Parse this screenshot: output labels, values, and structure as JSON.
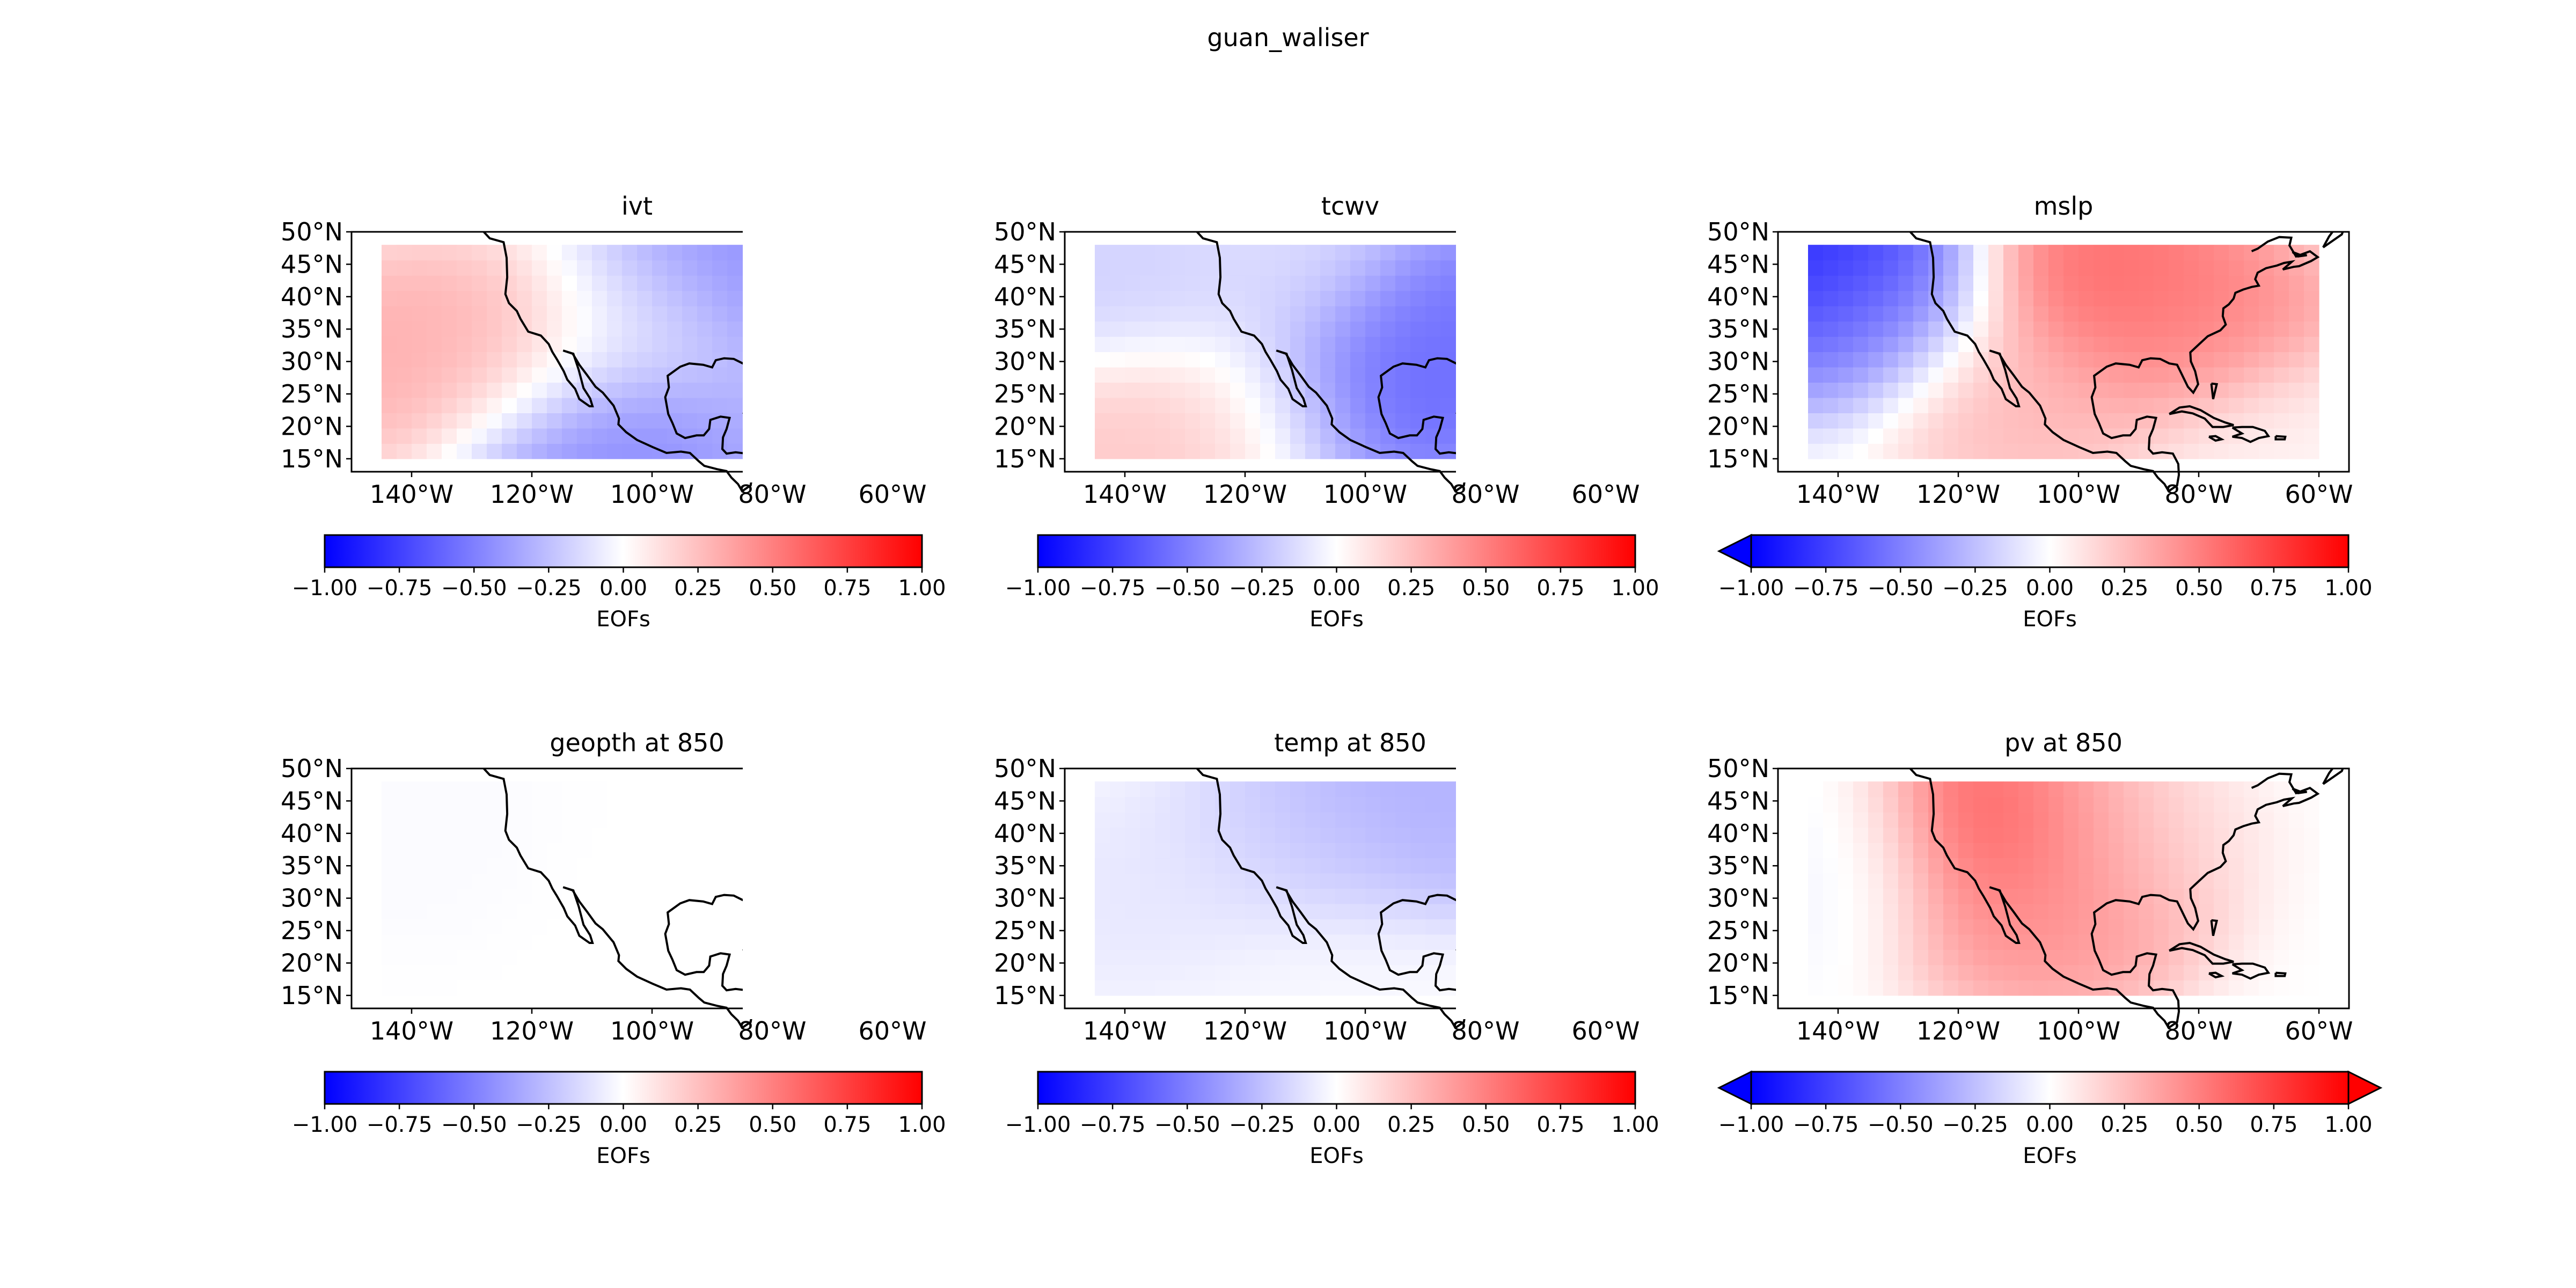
{
  "figure": {
    "title": "guan_waliser"
  },
  "chart_data": [
    {
      "type": "heatmap",
      "title": "ivt",
      "colorbar": {
        "label": "EOFs",
        "ticks": [
          "−1.00",
          "−0.75",
          "−0.50",
          "−0.25",
          "0.00",
          "0.25",
          "0.50",
          "0.75",
          "1.00"
        ],
        "extend": "neither",
        "vmin": -1,
        "vmax": 1
      },
      "xticks": [
        "140°W",
        "120°W",
        "100°W",
        "80°W",
        "60°W"
      ],
      "yticks": [
        "15°N",
        "20°N",
        "25°N",
        "30°N",
        "35°N",
        "40°N",
        "45°N",
        "50°N"
      ],
      "lon_range": [
        -150,
        -55
      ],
      "lat_range": [
        13,
        50
      ],
      "data_extent": {
        "lon": [
          -145,
          -60
        ],
        "lat": [
          15,
          48
        ]
      },
      "pattern": [
        {
          "lon": -140,
          "lat": 30,
          "value": 0.35
        },
        {
          "lon": -125,
          "lat": 30,
          "value": 0.3
        },
        {
          "lon": -112,
          "lat": 18,
          "value": -0.55
        },
        {
          "lon": -98,
          "lat": 15,
          "value": -0.45
        },
        {
          "lon": -85,
          "lat": 45,
          "value": -0.5
        },
        {
          "lon": -70,
          "lat": 40,
          "value": -0.45
        },
        {
          "lon": -72,
          "lat": 22,
          "value": -0.3
        },
        {
          "lon": -100,
          "lat": 35,
          "value": -0.1
        }
      ]
    },
    {
      "type": "heatmap",
      "title": "tcwv",
      "colorbar": {
        "label": "EOFs",
        "ticks": [
          "−1.00",
          "−0.75",
          "−0.50",
          "−0.25",
          "0.00",
          "0.25",
          "0.50",
          "0.75",
          "1.00"
        ],
        "extend": "neither",
        "vmin": -1,
        "vmax": 1
      },
      "xticks": [
        "140°W",
        "120°W",
        "100°W",
        "80°W",
        "60°W"
      ],
      "yticks": [
        "15°N",
        "20°N",
        "25°N",
        "30°N",
        "35°N",
        "40°N",
        "45°N",
        "50°N"
      ],
      "lon_range": [
        -150,
        -55
      ],
      "lat_range": [
        13,
        50
      ],
      "data_extent": {
        "lon": [
          -145,
          -60
        ],
        "lat": [
          15,
          48
        ]
      },
      "pattern": [
        {
          "lon": -135,
          "lat": 18,
          "value": 0.25
        },
        {
          "lon": -120,
          "lat": 22,
          "value": 0.15
        },
        {
          "lon": -100,
          "lat": 25,
          "value": -0.7
        },
        {
          "lon": -85,
          "lat": 35,
          "value": -0.6
        },
        {
          "lon": -70,
          "lat": 30,
          "value": -0.55
        },
        {
          "lon": -140,
          "lat": 42,
          "value": -0.2
        },
        {
          "lon": -115,
          "lat": 42,
          "value": -0.15
        }
      ]
    },
    {
      "type": "heatmap",
      "title": "mslp",
      "colorbar": {
        "label": "EOFs",
        "ticks": [
          "−1.00",
          "−0.75",
          "−0.50",
          "−0.25",
          "0.00",
          "0.25",
          "0.50",
          "0.75",
          "1.00"
        ],
        "extend": "min",
        "vmin": -1,
        "vmax": 1
      },
      "xticks": [
        "140°W",
        "120°W",
        "100°W",
        "80°W",
        "60°W"
      ],
      "yticks": [
        "15°N",
        "20°N",
        "25°N",
        "30°N",
        "35°N",
        "40°N",
        "45°N",
        "50°N"
      ],
      "lon_range": [
        -150,
        -55
      ],
      "lat_range": [
        13,
        50
      ],
      "data_extent": {
        "lon": [
          -145,
          -60
        ],
        "lat": [
          15,
          48
        ]
      },
      "pattern": [
        {
          "lon": -145,
          "lat": 46,
          "value": -1.0
        },
        {
          "lon": -135,
          "lat": 38,
          "value": -0.5
        },
        {
          "lon": -95,
          "lat": 42,
          "value": 0.65
        },
        {
          "lon": -80,
          "lat": 35,
          "value": 0.5
        },
        {
          "lon": -110,
          "lat": 25,
          "value": 0.3
        },
        {
          "lon": -65,
          "lat": 18,
          "value": 0.05
        }
      ]
    },
    {
      "type": "heatmap",
      "title": "geopth at 850",
      "colorbar": {
        "label": "EOFs",
        "ticks": [
          "−1.00",
          "−0.75",
          "−0.50",
          "−0.25",
          "0.00",
          "0.25",
          "0.50",
          "0.75",
          "1.00"
        ],
        "extend": "neither",
        "vmin": -1,
        "vmax": 1
      },
      "xticks": [
        "140°W",
        "120°W",
        "100°W",
        "80°W",
        "60°W"
      ],
      "yticks": [
        "15°N",
        "20°N",
        "25°N",
        "30°N",
        "35°N",
        "40°N",
        "45°N",
        "50°N"
      ],
      "lon_range": [
        -150,
        -55
      ],
      "lat_range": [
        13,
        50
      ],
      "data_extent": {
        "lon": [
          -145,
          -60
        ],
        "lat": [
          15,
          48
        ]
      },
      "pattern": [
        {
          "lon": -140,
          "lat": 40,
          "value": -0.02
        },
        {
          "lon": -100,
          "lat": 30,
          "value": 0.0
        }
      ]
    },
    {
      "type": "heatmap",
      "title": "temp at 850",
      "colorbar": {
        "label": "EOFs",
        "ticks": [
          "−1.00",
          "−0.75",
          "−0.50",
          "−0.25",
          "0.00",
          "0.25",
          "0.50",
          "0.75",
          "1.00"
        ],
        "extend": "neither",
        "vmin": -1,
        "vmax": 1
      },
      "xticks": [
        "140°W",
        "120°W",
        "100°W",
        "80°W",
        "60°W"
      ],
      "yticks": [
        "15°N",
        "20°N",
        "25°N",
        "30°N",
        "35°N",
        "40°N",
        "45°N",
        "50°N"
      ],
      "lon_range": [
        -150,
        -55
      ],
      "lat_range": [
        13,
        50
      ],
      "data_extent": {
        "lon": [
          -145,
          -60
        ],
        "lat": [
          15,
          48
        ]
      },
      "pattern": [
        {
          "lon": -95,
          "lat": 46,
          "value": -0.35
        },
        {
          "lon": -75,
          "lat": 44,
          "value": -0.3
        },
        {
          "lon": -110,
          "lat": 38,
          "value": -0.2
        },
        {
          "lon": -135,
          "lat": 30,
          "value": -0.1
        },
        {
          "lon": -110,
          "lat": 16,
          "value": -0.03
        }
      ]
    },
    {
      "type": "heatmap",
      "title": "pv at 850",
      "colorbar": {
        "label": "EOFs",
        "ticks": [
          "−1.00",
          "−0.75",
          "−0.50",
          "−0.25",
          "0.00",
          "0.25",
          "0.50",
          "0.75",
          "1.00"
        ],
        "extend": "both",
        "vmin": -1,
        "vmax": 1
      },
      "xticks": [
        "140°W",
        "120°W",
        "100°W",
        "80°W",
        "60°W"
      ],
      "yticks": [
        "15°N",
        "20°N",
        "25°N",
        "30°N",
        "35°N",
        "40°N",
        "45°N",
        "50°N"
      ],
      "lon_range": [
        -150,
        -55
      ],
      "lat_range": [
        13,
        50
      ],
      "data_extent": {
        "lon": [
          -145,
          -60
        ],
        "lat": [
          15,
          48
        ]
      },
      "pattern": [
        {
          "lon": -110,
          "lat": 40,
          "value": 0.85
        },
        {
          "lon": -105,
          "lat": 28,
          "value": 0.45
        },
        {
          "lon": -95,
          "lat": 40,
          "value": 0.1
        },
        {
          "lon": -140,
          "lat": 35,
          "value": -0.05
        }
      ]
    }
  ]
}
